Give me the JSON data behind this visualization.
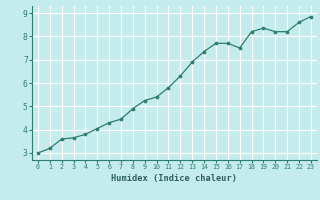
{
  "x": [
    0,
    1,
    2,
    3,
    4,
    5,
    6,
    7,
    8,
    9,
    10,
    11,
    12,
    13,
    14,
    15,
    16,
    17,
    18,
    19,
    20,
    21,
    22,
    23
  ],
  "y": [
    3.0,
    3.2,
    3.6,
    3.65,
    3.8,
    4.05,
    4.3,
    4.45,
    4.9,
    5.25,
    5.4,
    5.8,
    6.3,
    6.9,
    7.35,
    7.7,
    7.7,
    7.5,
    8.2,
    8.35,
    8.2,
    8.2,
    8.6,
    8.85
  ],
  "xlabel": "Humidex (Indice chaleur)",
  "xlim": [
    -0.5,
    23.5
  ],
  "ylim": [
    2.7,
    9.3
  ],
  "yticks": [
    3,
    4,
    5,
    6,
    7,
    8,
    9
  ],
  "xticks": [
    0,
    1,
    2,
    3,
    4,
    5,
    6,
    7,
    8,
    9,
    10,
    11,
    12,
    13,
    14,
    15,
    16,
    17,
    18,
    19,
    20,
    21,
    22,
    23
  ],
  "line_color": "#2e7d6e",
  "marker_color": "#2e7d6e",
  "bg_color": "#c5ecec",
  "plot_bg_color": "#c5ecec",
  "grid_color": "#ffffff",
  "tick_label_color": "#2e7d6e",
  "xlabel_color": "#2e6060",
  "spine_color": "#2e7d6e"
}
